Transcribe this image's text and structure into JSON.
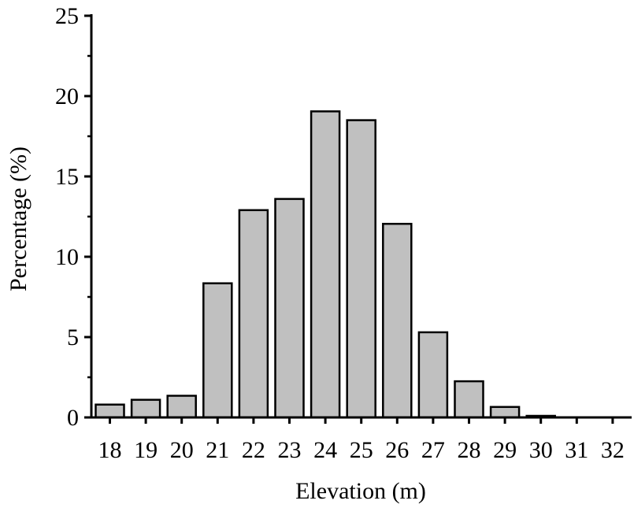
{
  "chart_data": {
    "type": "bar",
    "xlabel": "Elevation (m)",
    "ylabel": "Percentage (%)",
    "ylim": [
      0,
      25
    ],
    "yticks": [
      0,
      5,
      10,
      15,
      20,
      25
    ],
    "grid": false,
    "categories": [
      "18",
      "19",
      "20",
      "21",
      "22",
      "23",
      "24",
      "25",
      "26",
      "27",
      "28",
      "29",
      "30",
      "31",
      "32"
    ],
    "values": [
      0.8,
      1.1,
      1.35,
      8.35,
      12.9,
      13.6,
      19.05,
      18.5,
      12.05,
      5.3,
      2.25,
      0.65,
      0.1,
      0,
      0
    ],
    "bar_color": "#c0c0c0",
    "edge_color": "#000000"
  }
}
